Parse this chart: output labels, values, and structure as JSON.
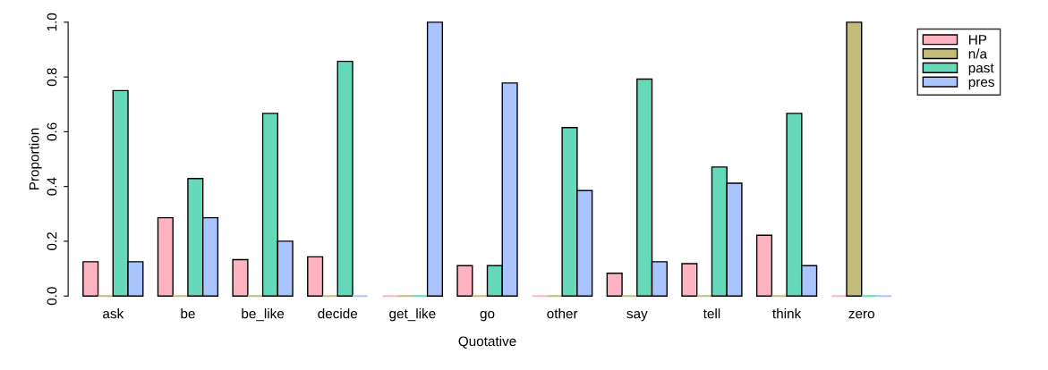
{
  "chart_data": {
    "type": "bar",
    "xlabel": "Quotative",
    "ylabel": "Proportion",
    "categories": [
      "ask",
      "be",
      "be_like",
      "decide",
      "get_like",
      "go",
      "other",
      "say",
      "tell",
      "think",
      "zero"
    ],
    "series": [
      {
        "name": "HP",
        "color": "#ffb3c1",
        "values": [
          0.125,
          0.286,
          0.133,
          0.143,
          0,
          0.111,
          0,
          0.083,
          0.118,
          0.222,
          0
        ]
      },
      {
        "name": "n/a",
        "color": "#c4bd7a",
        "values": [
          0,
          0,
          0,
          0,
          0,
          0,
          0,
          0,
          0,
          0,
          1.0
        ]
      },
      {
        "name": "past",
        "color": "#66d9bb",
        "values": [
          0.75,
          0.429,
          0.667,
          0.857,
          0,
          0.111,
          0.615,
          0.792,
          0.471,
          0.667,
          0
        ]
      },
      {
        "name": "pres",
        "color": "#a9c4ff",
        "values": [
          0.125,
          0.286,
          0.2,
          0,
          1.0,
          0.778,
          0.385,
          0.125,
          0.412,
          0.111,
          0
        ]
      }
    ],
    "ylim": [
      0,
      1
    ],
    "yticks": [
      {
        "value": 0,
        "label": "0.0"
      },
      {
        "value": 0.2,
        "label": "0.2"
      },
      {
        "value": 0.4,
        "label": "0.4"
      },
      {
        "value": 0.6,
        "label": "0.6"
      },
      {
        "value": 0.8,
        "label": "0.8"
      },
      {
        "value": 1,
        "label": "1.0"
      }
    ],
    "grid": false,
    "legend": "top right"
  }
}
